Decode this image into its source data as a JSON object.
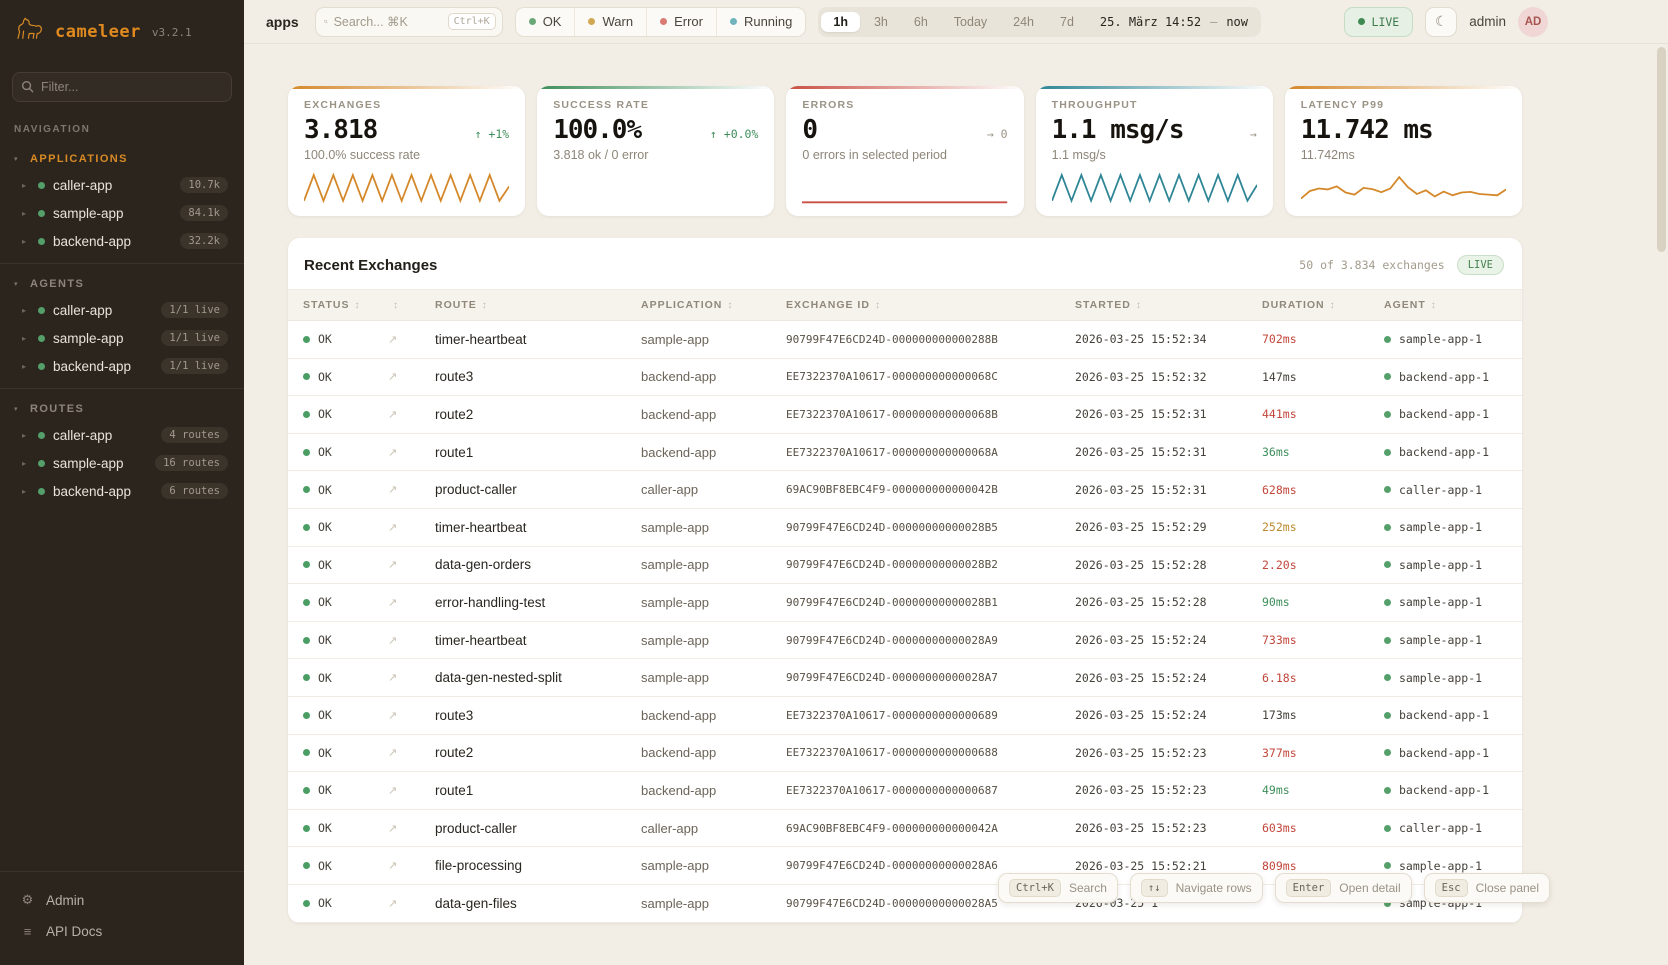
{
  "app": {
    "name": "cameleer",
    "version": "v3.2.1"
  },
  "sidebar": {
    "filter_placeholder": "Filter...",
    "nav_caption": "NAVIGATION",
    "sections": [
      {
        "label": "APPLICATIONS",
        "accent": true,
        "items": [
          {
            "name": "caller-app",
            "badge": "10.7k"
          },
          {
            "name": "sample-app",
            "badge": "84.1k"
          },
          {
            "name": "backend-app",
            "badge": "32.2k"
          }
        ]
      },
      {
        "label": "AGENTS",
        "accent": false,
        "items": [
          {
            "name": "caller-app",
            "badge": "1/1 live"
          },
          {
            "name": "sample-app",
            "badge": "1/1 live"
          },
          {
            "name": "backend-app",
            "badge": "1/1 live"
          }
        ]
      },
      {
        "label": "ROUTES",
        "accent": false,
        "items": [
          {
            "name": "caller-app",
            "badge": "4 routes"
          },
          {
            "name": "sample-app",
            "badge": "16 routes"
          },
          {
            "name": "backend-app",
            "badge": "6 routes"
          }
        ]
      }
    ],
    "footer": [
      {
        "label": "Admin"
      },
      {
        "label": "API Docs"
      }
    ]
  },
  "topbar": {
    "context_label": "apps",
    "search": {
      "placeholder": "Search... ⌘K",
      "kbd": "Ctrl+K"
    },
    "status_filters": [
      {
        "label": "OK",
        "color": "#6aa87a"
      },
      {
        "label": "Warn",
        "color": "#d2a855"
      },
      {
        "label": "Error",
        "color": "#d97b72"
      },
      {
        "label": "Running",
        "color": "#6fb3bd"
      }
    ],
    "time_ranges": [
      {
        "label": "1h",
        "active": true
      },
      {
        "label": "3h",
        "active": false
      },
      {
        "label": "6h",
        "active": false
      },
      {
        "label": "Today",
        "active": false
      },
      {
        "label": "24h",
        "active": false
      },
      {
        "label": "7d",
        "active": false
      }
    ],
    "time_from": "25. März 14:52",
    "time_sep": "—",
    "time_to": "now",
    "live_label": "LIVE",
    "user": "admin",
    "avatar": "AD"
  },
  "kpis": [
    {
      "label": "EXCHANGES",
      "value": "3.818",
      "trend_arrow": "↑",
      "trend_text": "+1%",
      "trend_color": "#3e8e5a",
      "subtitle": "100.0% success rate",
      "accent": "#d4882a",
      "spark": "exchanges-sparkline"
    },
    {
      "label": "SUCCESS RATE",
      "value": "100.0%",
      "trend_arrow": "↑",
      "trend_text": "+0.0%",
      "trend_color": "#3e8e5a",
      "subtitle": "3.818 ok / 0 error",
      "accent": "#3e8e5a",
      "spark": null
    },
    {
      "label": "ERRORS",
      "value": "0",
      "trend_arrow": "→",
      "trend_text": "0",
      "trend_color": "#9a9285",
      "subtitle": "0 errors in selected period",
      "accent": "#c94f43",
      "spark": "errors-sparkline"
    },
    {
      "label": "THROUGHPUT",
      "value": "1.1 msg/s",
      "trend_arrow": "→",
      "trend_text": "",
      "trend_color": "#9a9285",
      "subtitle": "1.1 msg/s",
      "accent": "#2e8596",
      "spark": "throughput-sparkline"
    },
    {
      "label": "LATENCY P99",
      "value": "11.742 ms",
      "trend_arrow": "",
      "trend_text": "",
      "trend_color": "#9a9285",
      "subtitle": "11.742ms",
      "accent": "#d4882a",
      "spark": "latency-sparkline"
    }
  ],
  "chart_data": [
    {
      "type": "line",
      "name": "exchanges-sparkline",
      "title": "Exchanges sparkline",
      "color": "#d4882a",
      "values": [
        8,
        92,
        8,
        92,
        8,
        92,
        8,
        92,
        8,
        92,
        8,
        92,
        8,
        92,
        8,
        92,
        8,
        92,
        8,
        92,
        8,
        55
      ]
    },
    {
      "type": "line",
      "name": "errors-sparkline",
      "title": "Errors sparkline",
      "color": "#c94f43",
      "values": [
        3,
        3
      ]
    },
    {
      "type": "line",
      "name": "throughput-sparkline",
      "title": "Throughput sparkline",
      "color": "#2e8596",
      "values": [
        8,
        92,
        8,
        92,
        8,
        92,
        8,
        92,
        8,
        92,
        8,
        92,
        8,
        92,
        8,
        92,
        8,
        92,
        8,
        92,
        8,
        60
      ]
    },
    {
      "type": "line",
      "name": "latency-sparkline",
      "title": "Latency p99 sparkline",
      "color": "#d4882a",
      "values": [
        15,
        40,
        48,
        45,
        55,
        35,
        28,
        50,
        46,
        36,
        48,
        85,
        52,
        30,
        42,
        22,
        38,
        26,
        35,
        37,
        30,
        28,
        26,
        45
      ]
    }
  ],
  "table": {
    "title": "Recent Exchanges",
    "summary": "50 of 3.834 exchanges",
    "live_label": "LIVE",
    "columns": [
      "STATUS",
      "",
      "ROUTE",
      "APPLICATION",
      "EXCHANGE ID",
      "STARTED",
      "DURATION",
      "AGENT"
    ],
    "status_color": "#4a9e63",
    "agent_dot_color": "#55a06a",
    "duration_colors": {
      "red": "#c2473b",
      "amber": "#bd8a2f",
      "green": "#3e8e5a",
      "neutral": "#45413a"
    },
    "rows": [
      {
        "status": "OK",
        "route": "timer-heartbeat",
        "application": "sample-app",
        "exchange_id": "90799F47E6CD24D-000000000000288B",
        "started": "2026-03-25 15:52:34",
        "duration": "702ms",
        "duration_color": "red",
        "agent": "sample-app-1"
      },
      {
        "status": "OK",
        "route": "route3",
        "application": "backend-app",
        "exchange_id": "EE7322370A10617-000000000000068C",
        "started": "2026-03-25 15:52:32",
        "duration": "147ms",
        "duration_color": "neutral",
        "agent": "backend-app-1"
      },
      {
        "status": "OK",
        "route": "route2",
        "application": "backend-app",
        "exchange_id": "EE7322370A10617-000000000000068B",
        "started": "2026-03-25 15:52:31",
        "duration": "441ms",
        "duration_color": "red",
        "agent": "backend-app-1"
      },
      {
        "status": "OK",
        "route": "route1",
        "application": "backend-app",
        "exchange_id": "EE7322370A10617-000000000000068A",
        "started": "2026-03-25 15:52:31",
        "duration": "36ms",
        "duration_color": "green",
        "agent": "backend-app-1"
      },
      {
        "status": "OK",
        "route": "product-caller",
        "application": "caller-app",
        "exchange_id": "69AC90BF8EBC4F9-000000000000042B",
        "started": "2026-03-25 15:52:31",
        "duration": "628ms",
        "duration_color": "red",
        "agent": "caller-app-1"
      },
      {
        "status": "OK",
        "route": "timer-heartbeat",
        "application": "sample-app",
        "exchange_id": "90799F47E6CD24D-00000000000028B5",
        "started": "2026-03-25 15:52:29",
        "duration": "252ms",
        "duration_color": "amber",
        "agent": "sample-app-1"
      },
      {
        "status": "OK",
        "route": "data-gen-orders",
        "application": "sample-app",
        "exchange_id": "90799F47E6CD24D-00000000000028B2",
        "started": "2026-03-25 15:52:28",
        "duration": "2.20s",
        "duration_color": "red",
        "agent": "sample-app-1"
      },
      {
        "status": "OK",
        "route": "error-handling-test",
        "application": "sample-app",
        "exchange_id": "90799F47E6CD24D-00000000000028B1",
        "started": "2026-03-25 15:52:28",
        "duration": "90ms",
        "duration_color": "green",
        "agent": "sample-app-1"
      },
      {
        "status": "OK",
        "route": "timer-heartbeat",
        "application": "sample-app",
        "exchange_id": "90799F47E6CD24D-00000000000028A9",
        "started": "2026-03-25 15:52:24",
        "duration": "733ms",
        "duration_color": "red",
        "agent": "sample-app-1"
      },
      {
        "status": "OK",
        "route": "data-gen-nested-split",
        "application": "sample-app",
        "exchange_id": "90799F47E6CD24D-00000000000028A7",
        "started": "2026-03-25 15:52:24",
        "duration": "6.18s",
        "duration_color": "red",
        "agent": "sample-app-1"
      },
      {
        "status": "OK",
        "route": "route3",
        "application": "backend-app",
        "exchange_id": "EE7322370A10617-0000000000000689",
        "started": "2026-03-25 15:52:24",
        "duration": "173ms",
        "duration_color": "neutral",
        "agent": "backend-app-1"
      },
      {
        "status": "OK",
        "route": "route2",
        "application": "backend-app",
        "exchange_id": "EE7322370A10617-0000000000000688",
        "started": "2026-03-25 15:52:23",
        "duration": "377ms",
        "duration_color": "red",
        "agent": "backend-app-1"
      },
      {
        "status": "OK",
        "route": "route1",
        "application": "backend-app",
        "exchange_id": "EE7322370A10617-0000000000000687",
        "started": "2026-03-25 15:52:23",
        "duration": "49ms",
        "duration_color": "green",
        "agent": "backend-app-1"
      },
      {
        "status": "OK",
        "route": "product-caller",
        "application": "caller-app",
        "exchange_id": "69AC90BF8EBC4F9-000000000000042A",
        "started": "2026-03-25 15:52:23",
        "duration": "603ms",
        "duration_color": "red",
        "agent": "caller-app-1"
      },
      {
        "status": "OK",
        "route": "file-processing",
        "application": "sample-app",
        "exchange_id": "90799F47E6CD24D-00000000000028A6",
        "started": "2026-03-25 15:52:21",
        "duration": "809ms",
        "duration_color": "red",
        "agent": "sample-app-1"
      },
      {
        "status": "OK",
        "route": "data-gen-files",
        "application": "sample-app",
        "exchange_id": "90799F47E6CD24D-00000000000028A5",
        "started": "2026-03-25 1",
        "duration": "",
        "duration_color": "neutral",
        "agent": "sample-app-1"
      }
    ]
  },
  "shortcuts": [
    {
      "key": "Ctrl+K",
      "label": "Search"
    },
    {
      "key": "↑↓",
      "label": "Navigate rows"
    },
    {
      "key": "Enter",
      "label": "Open detail"
    },
    {
      "key": "Esc",
      "label": "Close panel"
    }
  ]
}
